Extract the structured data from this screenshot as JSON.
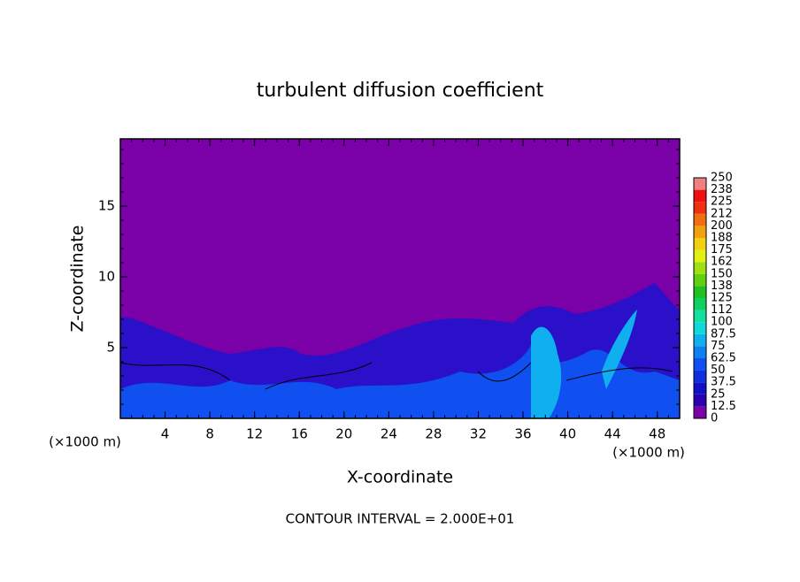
{
  "chart_data": {
    "type": "contour",
    "title": "turbulent diffusion coefficient",
    "xlabel": "X-coordinate",
    "ylabel": "Z-coordinate",
    "x_unit": "(×1000 m)",
    "note": "CONTOUR INTERVAL = 2.000E+01",
    "xlim": [
      0,
      50
    ],
    "xticks": [
      4,
      8,
      12,
      16,
      20,
      24,
      28,
      32,
      36,
      40,
      44,
      48
    ],
    "ylim": [
      0,
      19.75
    ],
    "yticks": [
      5,
      10,
      15
    ],
    "colorbar": {
      "levels": [
        0,
        12.5,
        25,
        37.5,
        50,
        62.5,
        75,
        87.5,
        100,
        112,
        125,
        138,
        150,
        162,
        175,
        188,
        200,
        212,
        225,
        238,
        250
      ],
      "colors": [
        "#7a00a8",
        "#2a00b0",
        "#1010c8",
        "#1030e0",
        "#1050f0",
        "#1080f0",
        "#10b0f0",
        "#10d8d8",
        "#10e0a0",
        "#10d060",
        "#20c020",
        "#60d010",
        "#a0e010",
        "#e0f010",
        "#f0d010",
        "#f0a010",
        "#f07010",
        "#f03010",
        "#f01010",
        "#f08080"
      ]
    }
  }
}
